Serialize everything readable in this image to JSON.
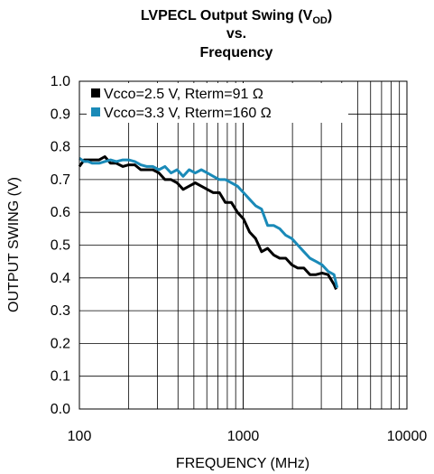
{
  "chart_data": {
    "type": "line",
    "title_line1": "LVPECL Output Swing (V",
    "title_subscript": "OD",
    "title_line1_suffix": ")",
    "title_line2": "vs.",
    "title_line3": "Frequency",
    "xlabel": "FREQUENCY (MHz)",
    "ylabel": "OUTPUT SWING (V)",
    "x_scale": "log",
    "xlim": [
      100,
      10000
    ],
    "ylim": [
      0.0,
      1.0
    ],
    "x_ticks": [
      100,
      1000,
      10000
    ],
    "x_tick_labels": [
      "100",
      "1000",
      "10000"
    ],
    "y_ticks": [
      0.0,
      0.1,
      0.2,
      0.3,
      0.4,
      0.5,
      0.6,
      0.7,
      0.8,
      0.9,
      1.0
    ],
    "y_tick_labels": [
      "0.0",
      "0.1",
      "0.2",
      "0.3",
      "0.4",
      "0.5",
      "0.6",
      "0.7",
      "0.8",
      "0.9",
      "1.0"
    ],
    "grid": true,
    "legend_position": "top-left",
    "series": [
      {
        "name": "Vcco=2.5 V, Rterm=91 Ω",
        "color": "#000000",
        "x": [
          100,
          107,
          113,
          120,
          132,
          143,
          155,
          168,
          184,
          200,
          218,
          237,
          258,
          281,
          306,
          333,
          363,
          395,
          430,
          468,
          510,
          555,
          604,
          657,
          716,
          779,
          848,
          923,
          1005,
          1094,
          1191,
          1296,
          1411,
          1536,
          1672,
          1820,
          1982,
          2157,
          2348,
          2556,
          2783,
          3029,
          3298,
          3590,
          3700
        ],
        "y": [
          0.74,
          0.76,
          0.76,
          0.76,
          0.76,
          0.77,
          0.75,
          0.75,
          0.74,
          0.745,
          0.745,
          0.73,
          0.73,
          0.73,
          0.72,
          0.7,
          0.7,
          0.69,
          0.67,
          0.68,
          0.69,
          0.68,
          0.67,
          0.66,
          0.66,
          0.63,
          0.63,
          0.6,
          0.58,
          0.54,
          0.52,
          0.48,
          0.49,
          0.47,
          0.46,
          0.46,
          0.44,
          0.43,
          0.43,
          0.41,
          0.41,
          0.415,
          0.41,
          0.38,
          0.365
        ]
      },
      {
        "name": "Vcco=3.3 V, Rterm=160 Ω",
        "color": "#1a8ab8",
        "x": [
          100,
          107,
          113,
          120,
          132,
          143,
          155,
          168,
          184,
          200,
          218,
          237,
          258,
          281,
          306,
          333,
          363,
          395,
          430,
          468,
          510,
          555,
          604,
          657,
          716,
          779,
          848,
          923,
          1005,
          1094,
          1191,
          1296,
          1411,
          1536,
          1672,
          1820,
          1982,
          2157,
          2348,
          2556,
          2783,
          3029,
          3298,
          3590,
          3750
        ],
        "y": [
          0.765,
          0.755,
          0.755,
          0.75,
          0.75,
          0.755,
          0.76,
          0.755,
          0.76,
          0.76,
          0.755,
          0.745,
          0.74,
          0.74,
          0.73,
          0.74,
          0.72,
          0.73,
          0.71,
          0.73,
          0.72,
          0.73,
          0.72,
          0.71,
          0.7,
          0.7,
          0.69,
          0.68,
          0.66,
          0.64,
          0.62,
          0.61,
          0.56,
          0.56,
          0.55,
          0.53,
          0.52,
          0.5,
          0.48,
          0.46,
          0.45,
          0.44,
          0.42,
          0.41,
          0.37
        ]
      }
    ]
  }
}
